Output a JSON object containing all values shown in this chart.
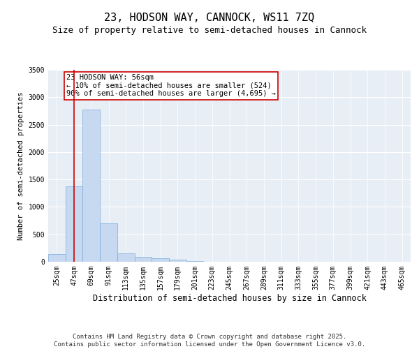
{
  "title1": "23, HODSON WAY, CANNOCK, WS11 7ZQ",
  "title2": "Size of property relative to semi-detached houses in Cannock",
  "xlabel": "Distribution of semi-detached houses by size in Cannock",
  "ylabel": "Number of semi-detached properties",
  "categories": [
    "25sqm",
    "47sqm",
    "69sqm",
    "91sqm",
    "113sqm",
    "135sqm",
    "157sqm",
    "179sqm",
    "201sqm",
    "223sqm",
    "245sqm",
    "267sqm",
    "289sqm",
    "311sqm",
    "333sqm",
    "355sqm",
    "377sqm",
    "399sqm",
    "421sqm",
    "443sqm",
    "465sqm"
  ],
  "values": [
    140,
    1380,
    2780,
    700,
    155,
    95,
    60,
    35,
    10,
    2,
    1,
    0,
    0,
    0,
    0,
    0,
    0,
    0,
    0,
    0,
    0
  ],
  "bar_color": "#c6d9f0",
  "bar_edgecolor": "#7aabdb",
  "vline_x": 1.0,
  "vline_color": "#cc0000",
  "annotation_text": "23 HODSON WAY: 56sqm\n← 10% of semi-detached houses are smaller (524)\n90% of semi-detached houses are larger (4,695) →",
  "annotation_box_color": "#ffffff",
  "annotation_box_edgecolor": "#cc0000",
  "ylim": [
    0,
    3500
  ],
  "yticks": [
    0,
    500,
    1000,
    1500,
    2000,
    2500,
    3000,
    3500
  ],
  "background_color": "#e8eef5",
  "footer_text": "Contains HM Land Registry data © Crown copyright and database right 2025.\nContains public sector information licensed under the Open Government Licence v3.0.",
  "title1_fontsize": 11,
  "title2_fontsize": 9,
  "xlabel_fontsize": 8.5,
  "ylabel_fontsize": 7.5,
  "tick_fontsize": 7,
  "annotation_fontsize": 7.5,
  "footer_fontsize": 6.5
}
